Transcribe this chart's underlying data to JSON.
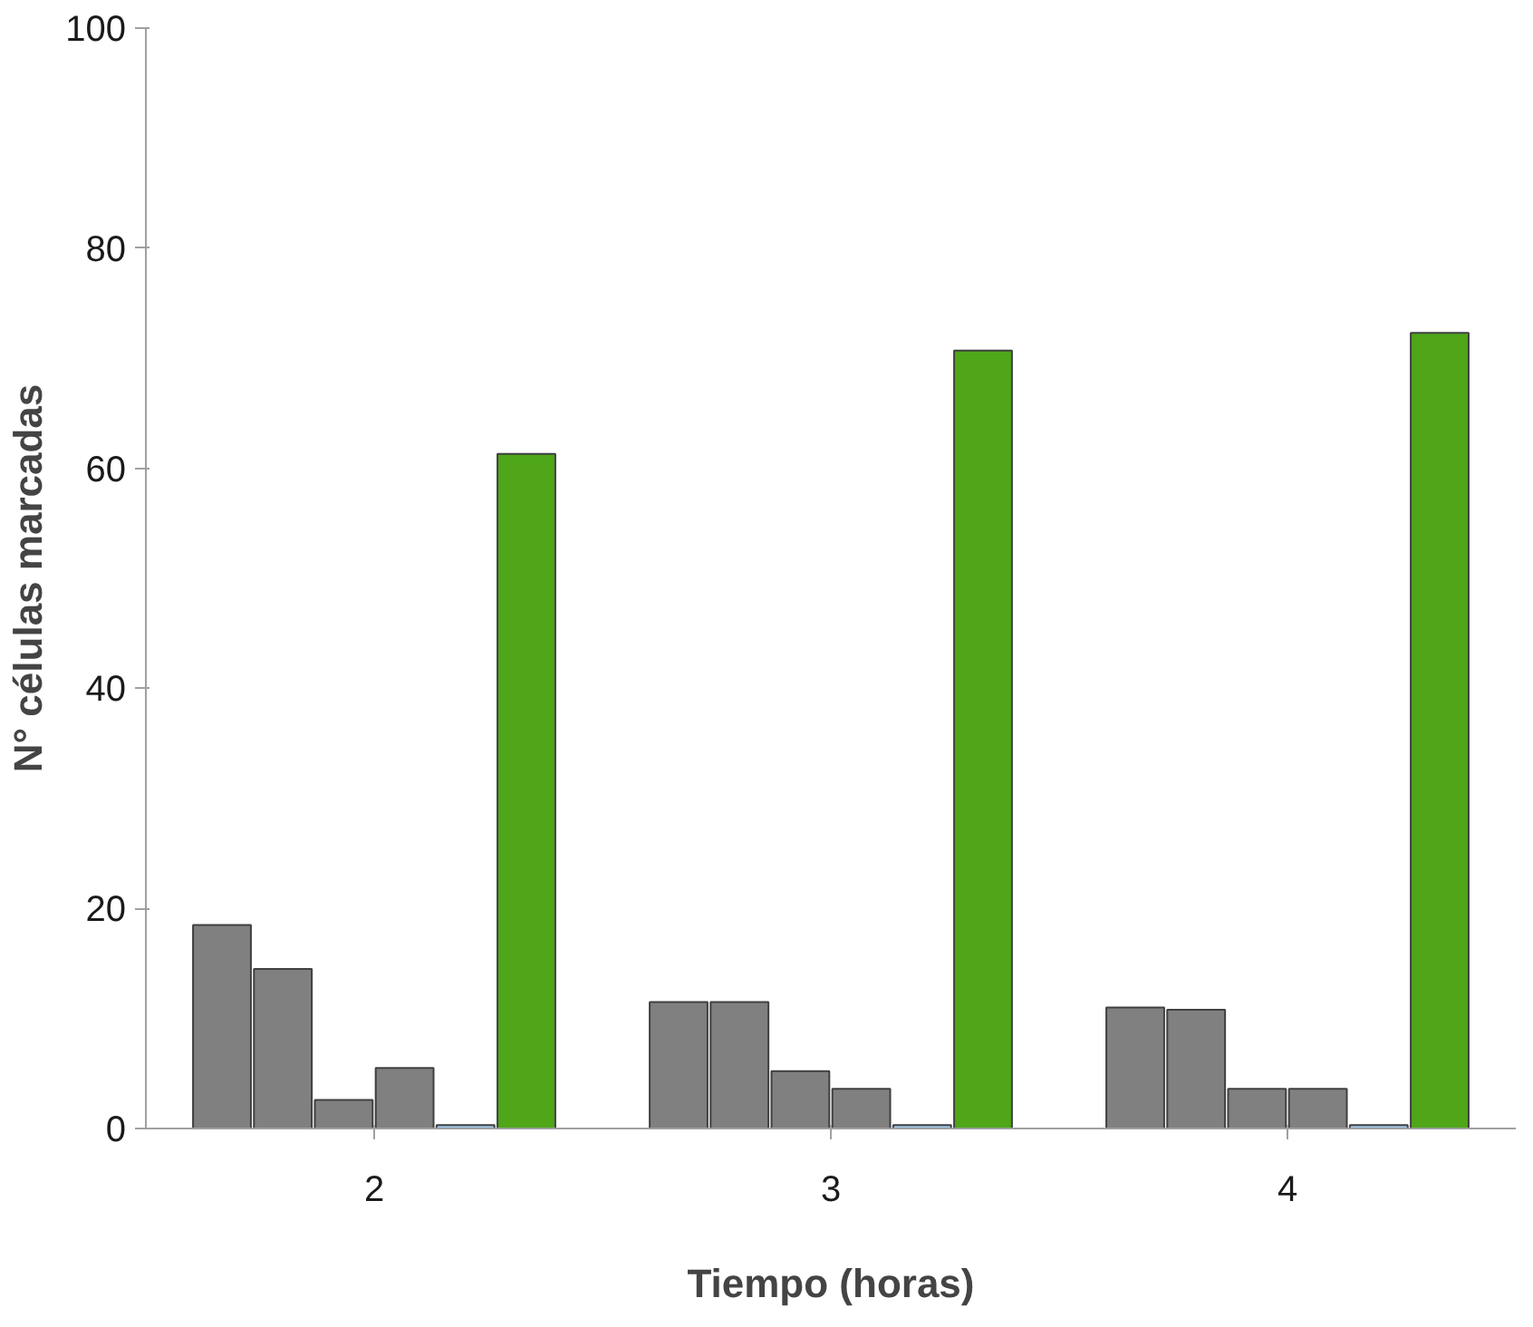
{
  "chart_data": {
    "type": "bar",
    "xlabel": "Tiempo (horas)",
    "ylabel": "N° células marcadas",
    "categories": [
      "2",
      "3",
      "4"
    ],
    "series": [
      {
        "color": "#808080",
        "values": [
          18.5,
          11.5,
          11.0
        ]
      },
      {
        "color": "#808080",
        "values": [
          14.5,
          11.5,
          10.8
        ]
      },
      {
        "color": "#808080",
        "values": [
          2.6,
          5.2,
          3.6
        ]
      },
      {
        "color": "#808080",
        "values": [
          5.5,
          3.6,
          3.6
        ]
      },
      {
        "color": "#9dc3e6",
        "values": [
          0.3,
          0.3,
          0.3
        ]
      },
      {
        "color": "#4ea618",
        "values": [
          61.3,
          70.7,
          72.3
        ]
      }
    ],
    "ylim": [
      0,
      100
    ],
    "yticks": [
      0,
      20,
      40,
      60,
      80,
      100
    ],
    "grid": false
  }
}
